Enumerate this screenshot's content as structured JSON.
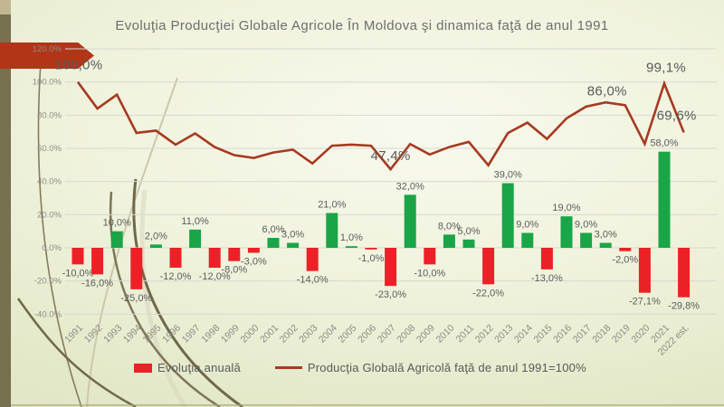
{
  "title": "Evoluţia Producţiei Globale Agricole În Moldova şi dinamica faţă de anul 1991",
  "legend": {
    "bar_label": "Evoluţia anuală",
    "line_label": "Producţia Globală Agricolă faţă de anul 1991=100%"
  },
  "colors": {
    "bar_positive": "#1aa548",
    "bar_negative": "#ec2127",
    "line": "#a63a20",
    "arrow": "#b23517",
    "grid": "#d8d8d0",
    "axis_text": "#8c8c85",
    "bar_label_text": "#5b5b5b",
    "line_label_text": "#595959",
    "sidebar_olive": "#76704f",
    "sidebar_tan": "#c3b791"
  },
  "chart_data": {
    "type": "combo_bar_line",
    "title": "Evoluţia Producţiei Globale Agricole În Moldova şi dinamica faţă de anul 1991",
    "categories": [
      "1991",
      "1992",
      "1993",
      "1994",
      "1995",
      "1996",
      "1997",
      "1998",
      "1999",
      "2000",
      "2001",
      "2002",
      "2003",
      "2004",
      "2005",
      "2006",
      "2007",
      "2008",
      "2009",
      "2010",
      "2011",
      "2012",
      "2013",
      "2014",
      "2015",
      "2016",
      "2017",
      "2018",
      "2019",
      "2020",
      "2021",
      "2022 est."
    ],
    "y_axis": {
      "min": -40,
      "max": 120,
      "tick_step": 20,
      "tick_labels": [
        "120.0%",
        "100.0%",
        "80.0%",
        "60.0%",
        "40.0%",
        "20.0%",
        "0.0%",
        "-20.0%",
        "-40.0%"
      ]
    },
    "grid": true,
    "legend_position": "bottom",
    "series": [
      {
        "name": "Evoluţia anuală",
        "type": "bar",
        "values": [
          -10,
          -16,
          10,
          -25,
          2,
          -12,
          11,
          -12,
          -8,
          -3,
          6,
          3,
          -14,
          21,
          1,
          -1,
          -23,
          32,
          -10,
          8,
          5,
          -22,
          39,
          9,
          -13,
          19,
          9,
          3,
          -2,
          -27.1,
          58,
          -29.8
        ],
        "data_labels": [
          "-10,0%",
          "-16,0%",
          "10,0%",
          "-25,0%",
          "2,0%",
          "-12,0%",
          "11,0%",
          "-12,0%",
          "-8,0%",
          "-3,0%",
          "6,0%",
          "3,0%",
          "-14,0%",
          "21,0%",
          "1,0%",
          "-1,0%",
          "-23,0%",
          "32,0%",
          "-10,0%",
          "8,0%",
          "5,0%",
          "-22,0%",
          "39,0%",
          "9,0%",
          "-13,0%",
          "19,0%",
          "9,0%",
          "3,0%",
          "-2,0%",
          "-27,1%",
          "58,0%",
          "-29,8%"
        ]
      },
      {
        "name": "Producţia Globală Agricolă faţă de anul 1991=100%",
        "type": "line",
        "values": [
          100.0,
          84.0,
          92.4,
          69.3,
          70.7,
          62.2,
          69.0,
          60.8,
          55.9,
          54.2,
          57.5,
          59.2,
          50.9,
          61.6,
          62.2,
          61.6,
          47.4,
          62.6,
          56.3,
          60.8,
          63.9,
          49.8,
          69.2,
          75.5,
          65.7,
          78.1,
          85.2,
          87.7,
          86.0,
          62.7,
          99.1,
          69.6
        ],
        "point_labels": [
          {
            "index": 0,
            "text": "100,0%",
            "dx": 1,
            "dy": -14
          },
          {
            "index": 16,
            "text": "47,4%",
            "dx": 0,
            "dy": -10
          },
          {
            "index": 28,
            "text": "86,0%",
            "dx": -20,
            "dy": -11
          },
          {
            "index": 30,
            "text": "99,1%",
            "dx": 2,
            "dy": -13
          },
          {
            "index": 31,
            "text": "69,6%",
            "dx": -8,
            "dy": -14
          }
        ]
      }
    ]
  }
}
